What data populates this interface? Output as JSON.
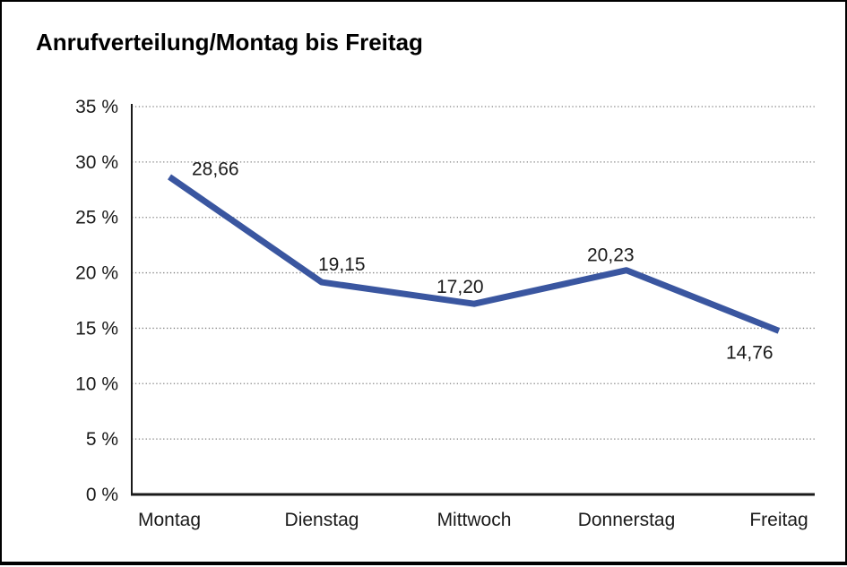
{
  "chart": {
    "title": "Anrufverteilung/Montag bis Freitag"
  },
  "chart_data": {
    "type": "line",
    "title": "Anrufverteilung/Montag bis Freitag",
    "categories": [
      "Montag",
      "Dienstag",
      "Mittwoch",
      "Donnerstag",
      "Freitag"
    ],
    "values": [
      28.66,
      19.15,
      17.2,
      20.23,
      14.76
    ],
    "point_labels": [
      "28,66",
      "19,15",
      "17,20",
      "20,23",
      "14,76"
    ],
    "series_name": "Anrufverteilung",
    "xlabel": "",
    "ylabel": "",
    "ylim": [
      0,
      35
    ],
    "ytick_step": 5,
    "ytick_labels": [
      "0 %",
      "5 %",
      "10 %",
      "15 %",
      "20 %",
      "25 %",
      "30 %",
      "35 %"
    ],
    "grid": "horizontal-dotted",
    "legend": "none",
    "colors": {
      "line": "#3A56A0",
      "text": "#1a1a1a",
      "grid": "#808080",
      "axis": "#1a1a1a",
      "background": "#ffffff",
      "frame_border": "#000000"
    }
  }
}
